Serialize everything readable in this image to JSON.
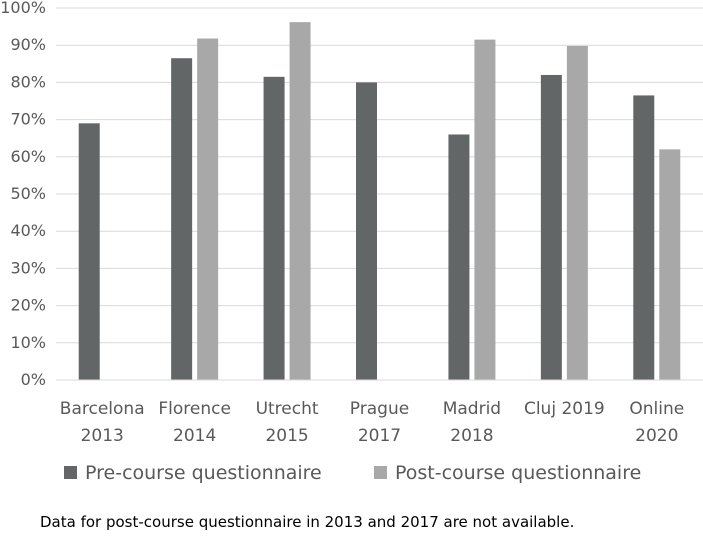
{
  "chart_data": {
    "type": "bar",
    "categories": [
      [
        "Barcelona",
        "2013"
      ],
      [
        "Florence",
        "2014"
      ],
      [
        "Utrecht",
        "2015"
      ],
      [
        "Prague",
        "2017"
      ],
      [
        "Madrid",
        "2018"
      ],
      [
        "Cluj 2019"
      ],
      [
        "Online",
        "2020"
      ]
    ],
    "series": [
      {
        "name": "Pre-course questionnaire",
        "color": "#636666",
        "values": [
          69,
          86.5,
          81.5,
          80,
          66,
          82,
          76.5
        ]
      },
      {
        "name": "Post-course questionnaire",
        "color": "#a8a8a8",
        "values": [
          null,
          91.8,
          96.2,
          null,
          91.5,
          89.8,
          62
        ]
      }
    ],
    "yticks": [
      "0%",
      "10%",
      "20%",
      "30%",
      "40%",
      "50%",
      "60%",
      "70%",
      "80%",
      "90%",
      "100%"
    ],
    "ylim": [
      0,
      100
    ],
    "grid": true,
    "legend_position": "bottom"
  },
  "footnote": "Data for post-course questionnaire in 2013 and 2017 are not available."
}
